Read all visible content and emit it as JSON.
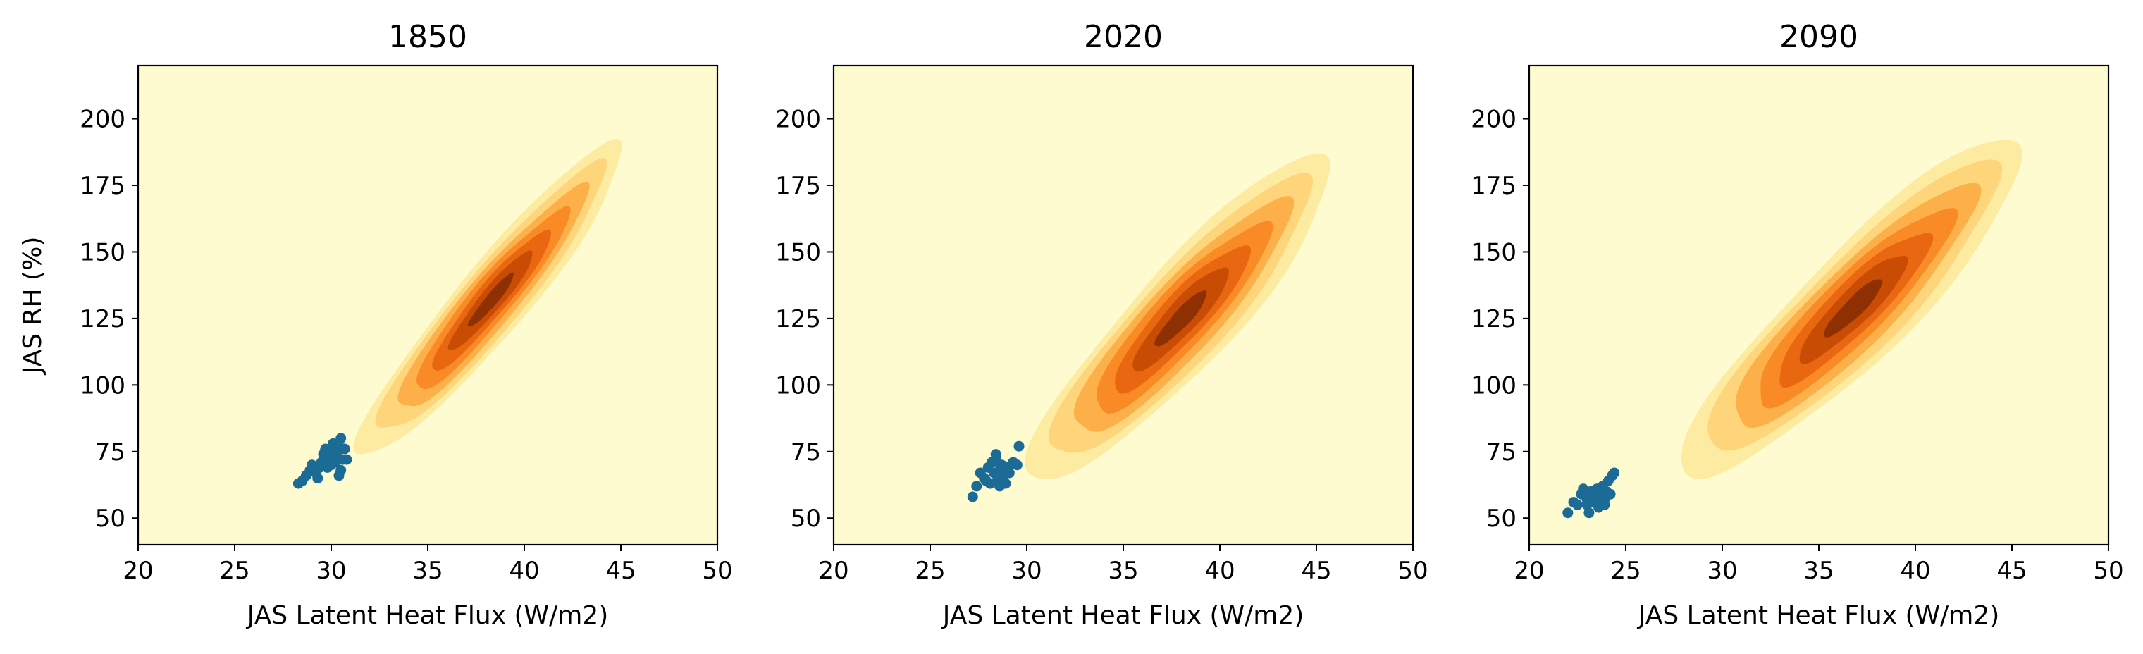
{
  "figure": {
    "shared_ylabel": "JAS RH (%)",
    "shared_xlabel": "JAS Latent Heat Flux (W/m2)"
  },
  "colors": {
    "background": "#fffbd0",
    "contour_levels": [
      "#feeba2",
      "#fed57b",
      "#fdb04a",
      "#f98a25",
      "#ea6711",
      "#c84c04",
      "#8e3004"
    ],
    "points": "#1c6a96"
  },
  "chart_data": [
    {
      "type": "scatter",
      "title": "1850",
      "xlabel": "JAS Latent Heat Flux (W/m2)",
      "ylabel": "JAS RH (%)",
      "xlim": [
        20,
        50
      ],
      "ylim": [
        40,
        220
      ],
      "xticks": [
        20,
        25,
        30,
        35,
        40,
        45,
        50
      ],
      "yticks": [
        50,
        75,
        100,
        125,
        150,
        175,
        200
      ],
      "grid": false,
      "density": {
        "center_x": 38.3,
        "center_y": 132,
        "sd_x": 2.8,
        "sd_y": 24,
        "corr": 0.94
      },
      "points": [
        [
          28.3,
          63
        ],
        [
          28.5,
          64
        ],
        [
          28.7,
          66
        ],
        [
          28.9,
          68
        ],
        [
          29.0,
          70
        ],
        [
          29.2,
          67
        ],
        [
          29.4,
          69
        ],
        [
          29.5,
          71
        ],
        [
          29.6,
          74
        ],
        [
          29.7,
          76
        ],
        [
          29.8,
          73
        ],
        [
          29.9,
          72
        ],
        [
          30.0,
          70
        ],
        [
          30.1,
          78
        ],
        [
          30.2,
          75
        ],
        [
          30.3,
          74
        ],
        [
          30.4,
          77
        ],
        [
          30.5,
          80
        ],
        [
          30.6,
          72
        ],
        [
          30.5,
          68
        ],
        [
          30.4,
          66
        ],
        [
          29.3,
          65
        ],
        [
          30.7,
          76
        ],
        [
          30.8,
          72
        ],
        [
          29.8,
          69
        ],
        [
          30.2,
          71
        ]
      ]
    },
    {
      "type": "scatter",
      "title": "2020",
      "xlabel": "JAS Latent Heat Flux (W/m2)",
      "ylabel": "",
      "xlim": [
        20,
        50
      ],
      "ylim": [
        40,
        220
      ],
      "xticks": [
        20,
        25,
        30,
        35,
        40,
        45,
        50
      ],
      "yticks": [
        50,
        75,
        100,
        125,
        150,
        175,
        200
      ],
      "grid": false,
      "density": {
        "center_x": 38.0,
        "center_y": 125,
        "sd_x": 3.2,
        "sd_y": 25,
        "corr": 0.9
      },
      "points": [
        [
          27.2,
          58
        ],
        [
          27.4,
          62
        ],
        [
          27.6,
          67
        ],
        [
          27.8,
          65
        ],
        [
          28.0,
          69
        ],
        [
          28.1,
          63
        ],
        [
          28.2,
          71
        ],
        [
          28.3,
          67
        ],
        [
          28.4,
          72
        ],
        [
          28.5,
          65
        ],
        [
          28.6,
          68
        ],
        [
          28.7,
          70
        ],
        [
          28.8,
          66
        ],
        [
          28.9,
          63
        ],
        [
          29.0,
          69
        ],
        [
          29.1,
          67
        ],
        [
          29.3,
          71
        ],
        [
          29.5,
          70
        ],
        [
          29.6,
          77
        ],
        [
          28.4,
          74
        ],
        [
          27.9,
          64
        ],
        [
          28.6,
          62
        ]
      ]
    },
    {
      "type": "scatter",
      "title": "2090",
      "xlabel": "JAS Latent Heat Flux (W/m2)",
      "ylabel": "",
      "xlim": [
        20,
        50
      ],
      "ylim": [
        40,
        220
      ],
      "xticks": [
        20,
        25,
        30,
        35,
        40,
        45,
        50
      ],
      "yticks": [
        50,
        75,
        100,
        125,
        150,
        175,
        200
      ],
      "grid": false,
      "density": {
        "center_x": 36.8,
        "center_y": 129,
        "sd_x": 3.6,
        "sd_y": 26,
        "corr": 0.9
      },
      "points": [
        [
          22.0,
          52
        ],
        [
          22.3,
          56
        ],
        [
          22.5,
          55
        ],
        [
          22.7,
          59
        ],
        [
          22.8,
          61
        ],
        [
          23.0,
          57
        ],
        [
          23.1,
          52
        ],
        [
          23.2,
          60
        ],
        [
          23.3,
          58
        ],
        [
          23.4,
          56
        ],
        [
          23.5,
          61
        ],
        [
          23.6,
          54
        ],
        [
          23.7,
          58
        ],
        [
          23.8,
          62
        ],
        [
          23.9,
          57
        ],
        [
          24.0,
          60
        ],
        [
          24.1,
          64
        ],
        [
          24.2,
          59
        ],
        [
          24.3,
          66
        ],
        [
          24.4,
          67
        ],
        [
          23.0,
          55
        ],
        [
          23.9,
          55
        ]
      ]
    }
  ]
}
